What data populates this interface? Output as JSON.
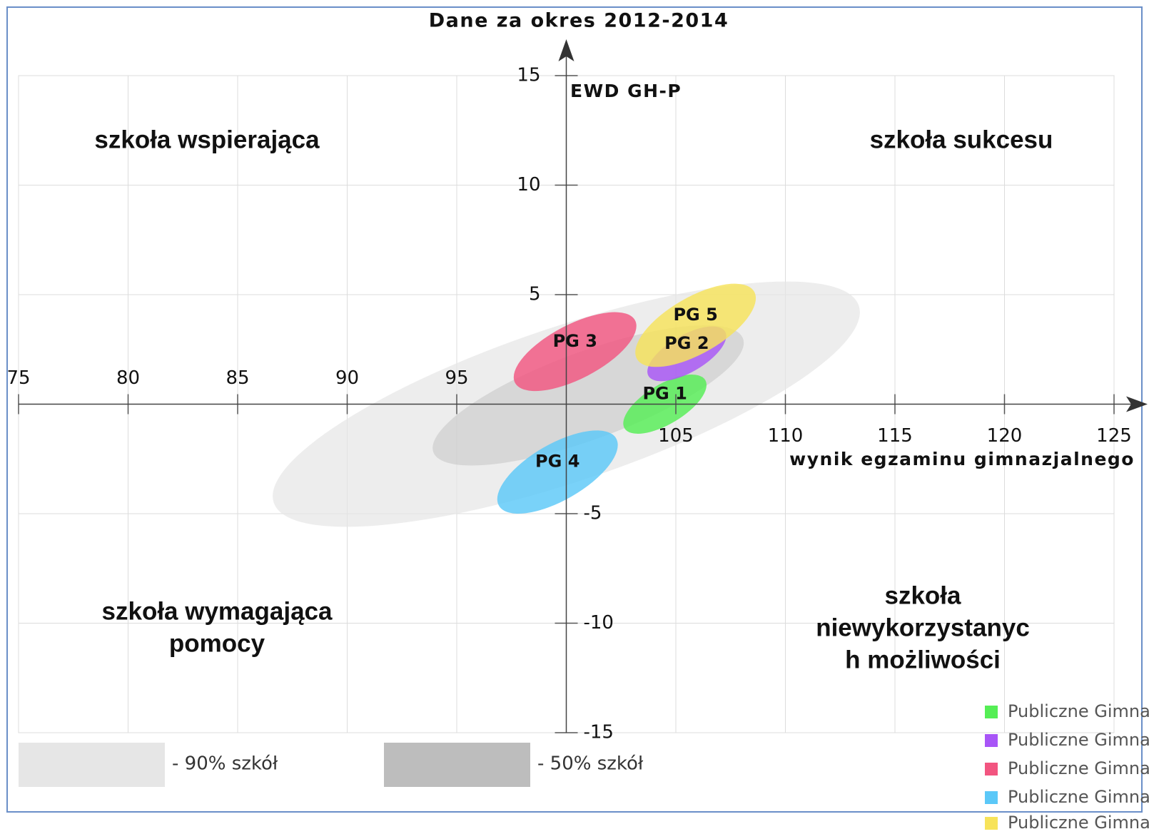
{
  "chart_data": {
    "type": "ellipse",
    "title": "Dane za okres 2012-2014",
    "xlabel": "wynik egzaminu gimnazjalnego",
    "ylabel": "EWD GH-P",
    "xlim": [
      75,
      125
    ],
    "ylim": [
      -15,
      15
    ],
    "xticks": [
      75,
      80,
      85,
      90,
      95,
      105,
      110,
      115,
      120,
      125
    ],
    "yticks": [
      15,
      10,
      5,
      -5,
      -10,
      -15
    ],
    "grid": true,
    "reference": [
      {
        "name": "- 90% szkół",
        "color": "#e6e6e6",
        "x": 100,
        "y": 0,
        "x_half": 13.4,
        "y_half": 5.6,
        "corr": 0.75
      },
      {
        "name": "- 50% szkół",
        "color": "#bdbdbd",
        "x": 101,
        "y": 0.4,
        "x_half": 7.1,
        "y_half": 3.2,
        "corr": 0.75
      }
    ],
    "series": [
      {
        "name": "Publiczne Gimna",
        "label": "PG 1",
        "color": "#55ee55",
        "x": 104.5,
        "y": 0,
        "x_half": 1.9,
        "y_half": 1.35,
        "corr": 0.65
      },
      {
        "name": "Publiczne Gimna",
        "label": "PG 2",
        "color": "#a855f7",
        "x": 105.5,
        "y": 2.3,
        "x_half": 1.8,
        "y_half": 1.25,
        "corr": 0.65
      },
      {
        "name": "Publiczne Gimna",
        "label": "PG 3",
        "color": "#f25580",
        "x": 100.4,
        "y": 2.4,
        "x_half": 2.8,
        "y_half": 1.8,
        "corr": 0.65
      },
      {
        "name": "Publiczne Gimna",
        "label": "PG 4",
        "color": "#5bc8f8",
        "x": 99.6,
        "y": -3.1,
        "x_half": 2.75,
        "y_half": 1.9,
        "corr": 0.65
      },
      {
        "name": "Publiczne Gimna",
        "label": "PG 5",
        "color": "#f7e35a",
        "x": 105.9,
        "y": 3.6,
        "x_half": 2.75,
        "y_half": 1.9,
        "corr": 0.65
      }
    ],
    "annotations": [
      {
        "lines": [
          "szkoła wspierająca"
        ],
        "color": "#111111"
      },
      {
        "lines": [
          "szkoła sukcesu"
        ],
        "color": "#ee1111"
      },
      {
        "lines": [
          "szkoła wymagająca",
          "pomocy"
        ],
        "color": "#111111"
      },
      {
        "lines": [
          "szkoła",
          "niewykorzystanyc",
          "h możliwości"
        ],
        "color": "#111111"
      }
    ]
  }
}
